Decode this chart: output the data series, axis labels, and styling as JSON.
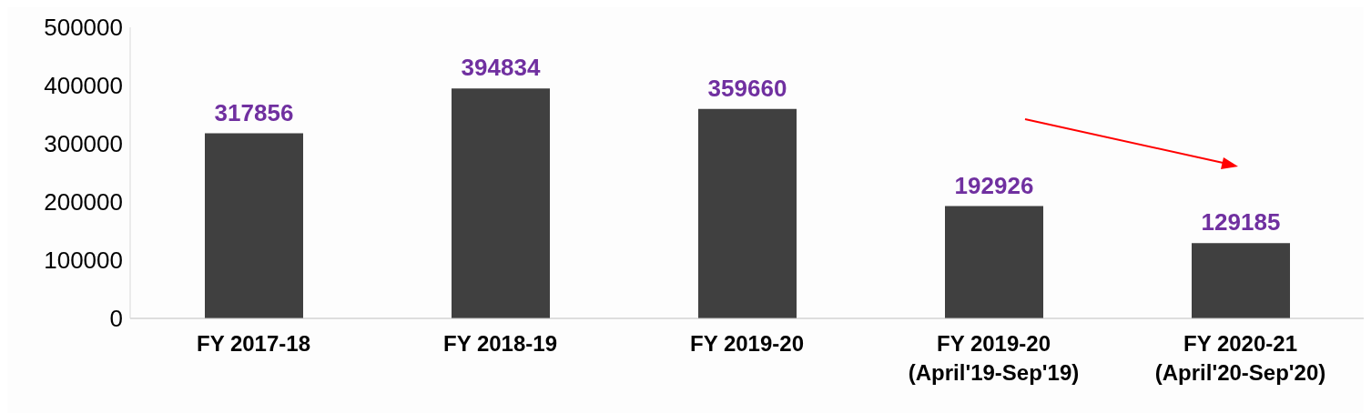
{
  "chart_data": {
    "type": "bar",
    "categories": [
      "FY 2017-18",
      "FY 2018-19",
      "FY 2019-20",
      "FY 2019-20\n(April'19-Sep'19)",
      "FY 2020-21\n(April'20-Sep'20)"
    ],
    "values": [
      317856,
      394834,
      359660,
      192926,
      129185
    ],
    "color": "#404040",
    "ylim": [
      0,
      500000
    ],
    "yticks": [
      0,
      100000,
      200000,
      300000,
      400000,
      500000
    ],
    "grid": false,
    "data_labels": true
  }
}
